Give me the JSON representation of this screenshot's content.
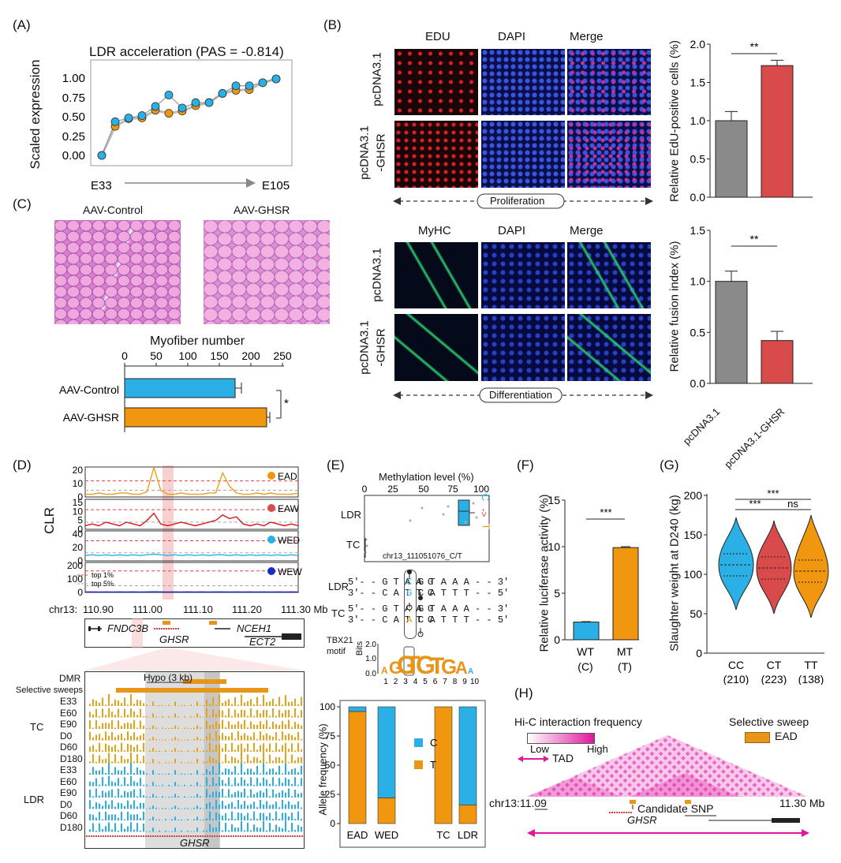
{
  "panels": {
    "A": "(A)",
    "B": "(B)",
    "C": "(C)",
    "D": "(D)",
    "E": "(E)",
    "F": "(F)",
    "G": "(G)",
    "H": "(H)"
  },
  "colors": {
    "orange": "#f0960f",
    "blue": "#2ab0e4",
    "gray": "#8a8a8a",
    "red": "#d94a4a",
    "pink": "#e0179e",
    "darkblue": "#1a2bbf"
  },
  "panelA": {
    "title": "LDR acceleration (PAS = -0.814)",
    "ylabel": "Scaled expression",
    "x_start": "E33",
    "x_end": "E105",
    "yticks": [
      "0.00",
      "0.25",
      "0.50",
      "0.75",
      "1.00"
    ]
  },
  "panelB": {
    "top_cols": [
      "EDU",
      "DAPI",
      "Merge"
    ],
    "bottom_cols": [
      "MyHC",
      "DAPI",
      "Merge"
    ],
    "row1": "pcDNA3.1",
    "row2a": "pcDNA3.1",
    "row2b": "-GHSR",
    "proliferation": "Proliferation",
    "differentiation": "Differentiation",
    "bar_top_ylabel": "Relative EdU-positive cells (%)",
    "bar_top_yticks": [
      "0.0",
      "0.5",
      "1.0",
      "1.5",
      "2.0"
    ],
    "bar_top_sig": "**",
    "bar_bottom_ylabel": "Relative fusion index (%)",
    "bar_bottom_yticks": [
      "0.0",
      "0.5",
      "1.0",
      "1.5"
    ],
    "bar_bottom_sig": "**",
    "x_cat1": "pcDNA3.1",
    "x_cat2": "pcDNA3.1-GHSR"
  },
  "panelC": {
    "img1": "AAV-Control",
    "img2": "AAV-GHSR",
    "title": "Myofiber number",
    "xticks": [
      "0",
      "50",
      "100",
      "150",
      "200",
      "250"
    ],
    "sig": "*"
  },
  "panelD": {
    "ylabel": "CLR",
    "tracks": [
      "EAD",
      "EAW",
      "WED",
      "WEW"
    ],
    "legend_top1": "top 1%",
    "legend_top5": "top 5%",
    "chrom": "chr13:",
    "xticks": [
      "110.90",
      "111.00",
      "111.10",
      "111.20",
      "111.30 Mb"
    ],
    "genes": [
      "FNDC3B",
      "GHSR",
      "NCEH1",
      "ECT2"
    ],
    "dmr": "DMR",
    "hypo": "Hypo (3 kb)",
    "sweeps": "Selective sweeps",
    "group_tc": "TC",
    "group_ldr": "LDR",
    "stages": [
      "E33",
      "E60",
      "E90",
      "D0",
      "D60",
      "D180"
    ],
    "bottom_gene": "GHSR",
    "yticks_ead": [
      "0",
      "10",
      "20"
    ],
    "yticks_eaw": [
      "0",
      "5",
      "10",
      "15"
    ],
    "yticks_wed": [
      "0",
      "20",
      "40"
    ],
    "yticks_wew": [
      "0",
      "100",
      "200"
    ]
  },
  "panelE": {
    "meth_title": "Methylation level (%)",
    "meth_xticks": [
      "0",
      "25",
      "50",
      "75",
      "100"
    ],
    "row_ldr": "LDR",
    "row_tc": "TC",
    "snp_label": "chr13_111051076_C/T",
    "allele_c": "C",
    "allele_arrow": "->",
    "allele_t": "T",
    "seq_ldr_1": "5'- - G T A A G",
    "seq_ldr_2": "3'- - C A T T C",
    "seq_ldr_1b": "G T A A A - - 3'",
    "seq_ldr_2b": "C A T T T - - 5'",
    "seq_ldr_c1": "C",
    "seq_ldr_g2": "G",
    "seq_tc_t1": "T",
    "seq_tc_a2": "A",
    "motif_label1": "TBX21",
    "motif_label2": "motif",
    "bits": "Bits",
    "bits_ticks": [
      "0.0",
      "1.0",
      "2.0"
    ],
    "motif_positions": [
      "1",
      "2",
      "3",
      "4",
      "5",
      "6",
      "7",
      "8",
      "9",
      "10"
    ],
    "af_ylabel": "Allele frequency (%)",
    "af_yticks": [
      "0",
      "25",
      "50",
      "75",
      "100"
    ],
    "af_groups": [
      "EAD",
      "WED",
      "TC",
      "LDR"
    ],
    "legend_c": "C",
    "legend_t": "T"
  },
  "panelF": {
    "ylabel": "Relative luciferase activity (%)",
    "yticks": [
      "0",
      "5",
      "10",
      "15"
    ],
    "cats": [
      "WT",
      "MT"
    ],
    "cats_sub": [
      "(C)",
      "(T)"
    ],
    "sig": "***"
  },
  "panelG": {
    "ylabel": "Slaughter weight at D240 (kg)",
    "yticks": [
      "0",
      "50",
      "100",
      "150",
      "200"
    ],
    "cats": [
      "CC",
      "CT",
      "TT"
    ],
    "counts": [
      "(210)",
      "(223)",
      "(138)"
    ],
    "sig_top": "***",
    "sig_1": "***",
    "sig_2": "ns"
  },
  "panelH": {
    "title": "Hi-C interaction frequency",
    "low": "Low",
    "high": "High",
    "tad": "TAD",
    "sweep_title": "Selective sweep",
    "sweep_item": "EAD",
    "chrom_start": "chr13:11.09",
    "chrom_end": "11.30 Mb",
    "candidate": "Candidate SNP",
    "gene": "GHSR"
  },
  "chart_data": [
    {
      "type": "line",
      "title": "LDR acceleration (PAS = -0.814)",
      "ylabel": "Scaled expression",
      "ylim": [
        0,
        1.05
      ],
      "series": [
        {
          "name": "LDR",
          "values": [
            0.0,
            0.44,
            0.49,
            0.52,
            0.64,
            0.79,
            0.62,
            0.69,
            0.69,
            0.81,
            0.91,
            0.91,
            0.95,
            1.0
          ]
        },
        {
          "name": "TC",
          "values": [
            0.0,
            0.38,
            0.48,
            0.49,
            0.59,
            0.55,
            0.58,
            0.65,
            0.69,
            0.81,
            0.85,
            0.86,
            0.95,
            1.0
          ]
        }
      ]
    },
    {
      "type": "bar",
      "categories": [
        "pcDNA3.1",
        "pcDNA3.1-GHSR"
      ],
      "values": [
        1.0,
        1.72
      ],
      "errors": [
        0.12,
        0.07
      ],
      "ylabel": "Relative EdU-positive cells (%)",
      "ylim": [
        0,
        2.0
      ]
    },
    {
      "type": "bar",
      "categories": [
        "pcDNA3.1",
        "pcDNA3.1-GHSR"
      ],
      "values": [
        1.0,
        0.42
      ],
      "errors": [
        0.1,
        0.09
      ],
      "ylabel": "Relative fusion index (%)",
      "ylim": [
        0,
        1.5
      ]
    },
    {
      "type": "bar",
      "title": "Myofiber number",
      "categories": [
        "AAV-Control",
        "AAV-GHSR"
      ],
      "values": [
        175,
        225
      ],
      "errors": [
        10,
        5
      ],
      "xlim": [
        0,
        250
      ]
    },
    {
      "type": "bar",
      "ylabel": "Allele frequency (%)",
      "categories": [
        "EAD",
        "WED",
        "TC",
        "LDR"
      ],
      "series": [
        {
          "name": "T",
          "values": [
            96,
            22,
            100,
            16
          ]
        },
        {
          "name": "C",
          "values": [
            4,
            78,
            0,
            84
          ]
        }
      ],
      "ylim": [
        0,
        100
      ]
    },
    {
      "type": "bar",
      "ylabel": "Relative luciferase activity (%)",
      "categories": [
        "WT (C)",
        "MT (T)"
      ],
      "values": [
        1.9,
        9.9
      ],
      "errors": [
        0.05,
        0.1
      ],
      "ylim": [
        0,
        15
      ]
    },
    {
      "type": "violin",
      "ylabel": "Slaughter weight at D240 (kg)",
      "categories": [
        "CC",
        "CT",
        "TT"
      ],
      "medians": [
        112,
        108,
        104
      ],
      "ranges": [
        [
          55,
          172
        ],
        [
          50,
          168
        ],
        [
          45,
          175
        ]
      ],
      "ylim": [
        0,
        200
      ]
    }
  ]
}
